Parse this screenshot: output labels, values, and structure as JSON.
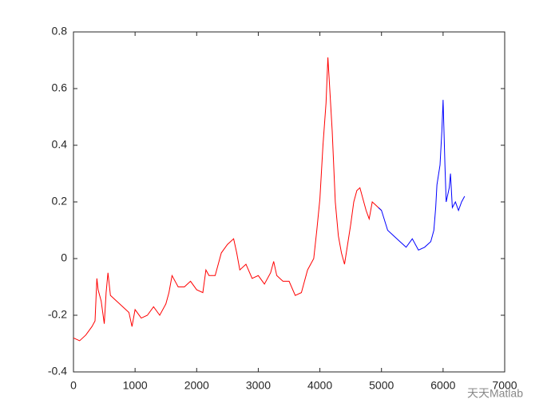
{
  "chart_data": {
    "type": "line",
    "xlim": [
      0,
      7000
    ],
    "xticks": [
      0,
      1000,
      2000,
      3000,
      4000,
      5000,
      6000,
      7000
    ],
    "ylim": [
      -0.4,
      0.8
    ],
    "yticks": [
      -0.4,
      -0.2,
      0,
      0.2,
      0.4,
      0.6,
      0.8
    ],
    "grid": false,
    "watermark": "天天Matlab",
    "series": [
      {
        "color": "#ff0000",
        "x": [
          0,
          100,
          200,
          300,
          350,
          380,
          400,
          450,
          500,
          530,
          560,
          600,
          700,
          800,
          900,
          950,
          1000,
          1100,
          1200,
          1300,
          1400,
          1500,
          1550,
          1600,
          1700,
          1800,
          1900,
          2000,
          2100,
          2150,
          2200,
          2300,
          2400,
          2500,
          2600,
          2650,
          2700,
          2800,
          2900,
          3000,
          3100,
          3200,
          3250,
          3300,
          3400,
          3500,
          3600,
          3700,
          3800,
          3900,
          3950,
          4000,
          4050,
          4100,
          4130,
          4160,
          4200,
          4250,
          4300,
          4350,
          4400,
          4450,
          4500,
          4550,
          4600,
          4650,
          4700,
          4750,
          4800,
          4850,
          4900,
          4950,
          5000
        ],
        "values": [
          -0.28,
          -0.29,
          -0.27,
          -0.24,
          -0.22,
          -0.07,
          -0.11,
          -0.15,
          -0.23,
          -0.12,
          -0.05,
          -0.13,
          -0.15,
          -0.17,
          -0.19,
          -0.24,
          -0.18,
          -0.21,
          -0.2,
          -0.17,
          -0.2,
          -0.16,
          -0.12,
          -0.06,
          -0.1,
          -0.1,
          -0.08,
          -0.11,
          -0.12,
          -0.04,
          -0.06,
          -0.06,
          0.02,
          0.05,
          0.07,
          0.02,
          -0.04,
          -0.02,
          -0.07,
          -0.06,
          -0.09,
          -0.05,
          -0.01,
          -0.06,
          -0.08,
          -0.08,
          -0.13,
          -0.12,
          -0.04,
          0.0,
          0.1,
          0.21,
          0.4,
          0.55,
          0.71,
          0.6,
          0.45,
          0.2,
          0.08,
          0.02,
          -0.02,
          0.05,
          0.12,
          0.2,
          0.24,
          0.25,
          0.21,
          0.17,
          0.14,
          0.2,
          0.19,
          0.18,
          0.17
        ]
      },
      {
        "color": "#0000ff",
        "x": [
          4950,
          5000,
          5100,
          5200,
          5300,
          5400,
          5500,
          5600,
          5700,
          5800,
          5850,
          5880,
          5900,
          5950,
          5980,
          6000,
          6030,
          6050,
          6100,
          6120,
          6150,
          6200,
          6250,
          6300,
          6350
        ],
        "values": [
          0.18,
          0.17,
          0.1,
          0.08,
          0.06,
          0.04,
          0.07,
          0.03,
          0.04,
          0.06,
          0.1,
          0.18,
          0.26,
          0.33,
          0.45,
          0.56,
          0.33,
          0.2,
          0.25,
          0.3,
          0.18,
          0.2,
          0.17,
          0.2,
          0.22
        ]
      }
    ]
  }
}
